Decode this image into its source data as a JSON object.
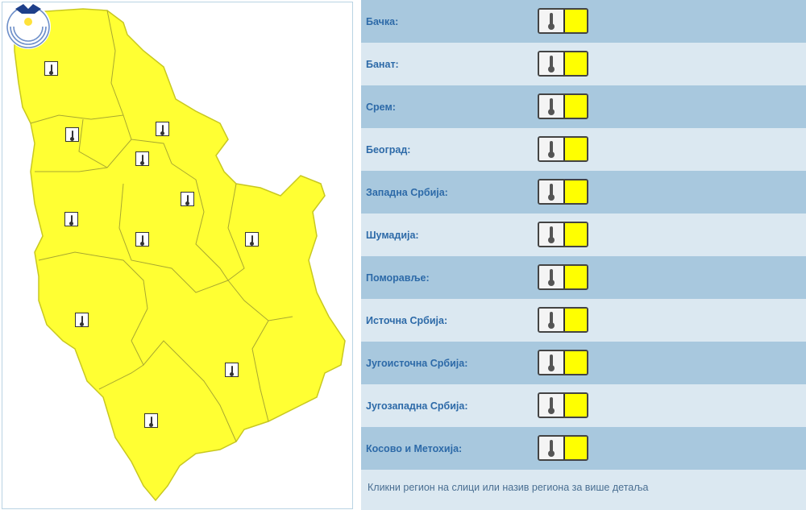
{
  "colors": {
    "warning": "#ffff00",
    "map_fill": "#ffff33",
    "row_dark": "#a8c8de",
    "row_light": "#dbe8f1",
    "label": "#2d6aa8"
  },
  "map": {
    "logo": "rhmz-logo",
    "icon": "thermometer-icon"
  },
  "regions": [
    {
      "label": "Бачка:",
      "level": "yellow"
    },
    {
      "label": "Банат:",
      "level": "yellow"
    },
    {
      "label": "Срем:",
      "level": "yellow"
    },
    {
      "label": "Београд:",
      "level": "yellow"
    },
    {
      "label": "Западна Србија:",
      "level": "yellow"
    },
    {
      "label": "Шумадија:",
      "level": "yellow"
    },
    {
      "label": "Поморавље:",
      "level": "yellow"
    },
    {
      "label": "Источна Србија:",
      "level": "yellow"
    },
    {
      "label": "Југоисточна Србија:",
      "level": "yellow"
    },
    {
      "label": "Југозападна Србија:",
      "level": "yellow"
    },
    {
      "label": "Косово и Метохија:",
      "level": "yellow"
    }
  ],
  "footer": "Кликни регион на слици или назив региона за више детаља"
}
